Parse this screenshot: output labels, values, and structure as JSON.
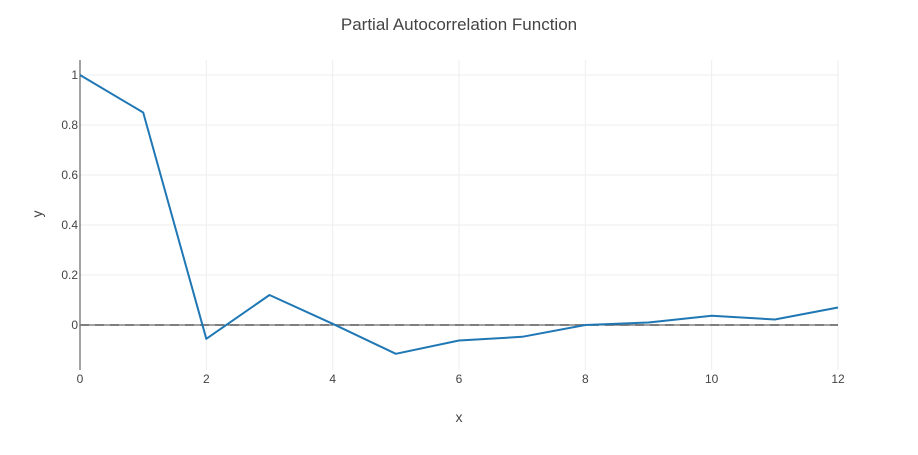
{
  "chart_data": {
    "type": "line",
    "title": "Partial Autocorrelation Function",
    "xlabel": "x",
    "ylabel": "y",
    "xlim": [
      0,
      12
    ],
    "ylim": [
      -0.18,
      1.06
    ],
    "x_ticks": [
      0,
      2,
      4,
      6,
      8,
      10,
      12
    ],
    "x_tick_labels": [
      "0",
      "2",
      "4",
      "6",
      "8",
      "10",
      "12"
    ],
    "y_ticks": [
      0,
      0.2,
      0.4,
      0.6,
      0.8,
      1
    ],
    "y_tick_labels": [
      "0",
      "0.2",
      "0.4",
      "0.6",
      "0.8",
      "1"
    ],
    "grid": true,
    "legend": "none",
    "series": [
      {
        "x": [
          0,
          1,
          2,
          3,
          4,
          5,
          6,
          7,
          8,
          9,
          10,
          11,
          12
        ],
        "y": [
          1.0,
          0.85,
          -0.055,
          0.12,
          0.005,
          -0.115,
          -0.062,
          -0.047,
          0.0,
          0.01,
          0.037,
          0.022,
          0.07
        ],
        "color": "#1f77b4"
      }
    ],
    "reference_lines": [
      {
        "y": 0,
        "style": "dashed",
        "color": "#7f7f7f"
      }
    ]
  },
  "colors": {
    "grid": "#eeeeee",
    "axis": "#444444",
    "text": "#444444",
    "title": "#444444"
  }
}
